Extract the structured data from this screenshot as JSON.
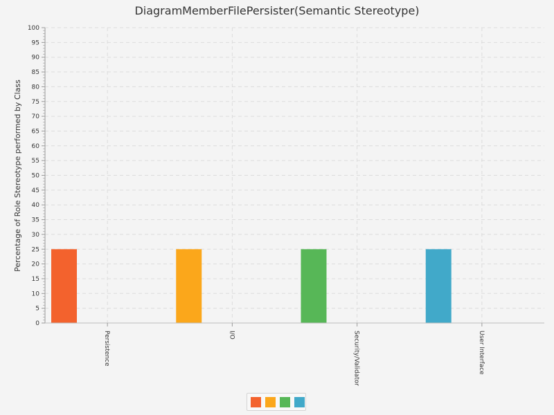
{
  "chart_data": {
    "type": "bar",
    "title": "DiagramMemberFilePersister(Semantic Stereotype)",
    "xlabel": "",
    "ylabel": "Percentage of Role Stereotype performed by Class",
    "categories": [
      "Persistence",
      "I/O",
      "Security/Validator",
      "User Interface"
    ],
    "values": [
      25,
      25,
      25,
      25
    ],
    "ylim": [
      0,
      100
    ],
    "ytick_step": 5,
    "grid": true,
    "legend": "bottom-center",
    "colors": [
      "#f3622d",
      "#fba71b",
      "#57b757",
      "#41a9c9"
    ]
  }
}
